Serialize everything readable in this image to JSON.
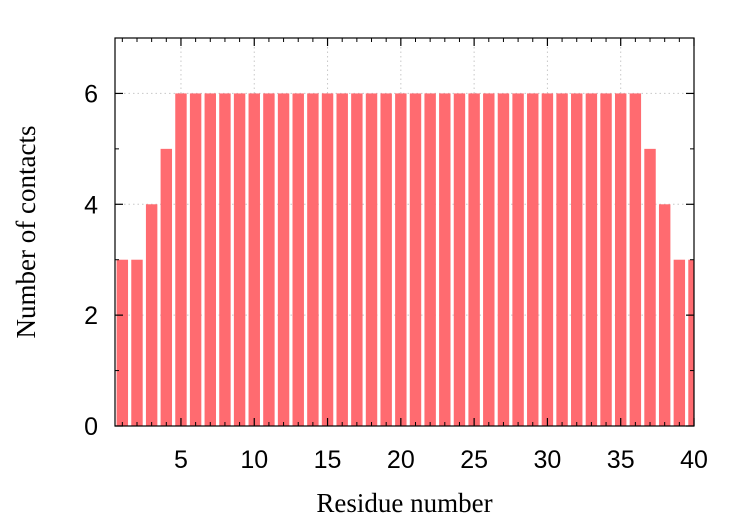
{
  "chart_data": {
    "type": "bar",
    "x": [
      1,
      2,
      3,
      4,
      5,
      6,
      7,
      8,
      9,
      10,
      11,
      12,
      13,
      14,
      15,
      16,
      17,
      18,
      19,
      20,
      21,
      22,
      23,
      24,
      25,
      26,
      27,
      28,
      29,
      30,
      31,
      32,
      33,
      34,
      35,
      36,
      37,
      38,
      39,
      40
    ],
    "values": [
      3,
      3,
      4,
      5,
      6,
      6,
      6,
      6,
      6,
      6,
      6,
      6,
      6,
      6,
      6,
      6,
      6,
      6,
      6,
      6,
      6,
      6,
      6,
      6,
      6,
      6,
      6,
      6,
      6,
      6,
      6,
      6,
      6,
      6,
      6,
      6,
      5,
      4,
      3,
      3
    ],
    "xlabel": "Residue number",
    "ylabel": "Number of contacts",
    "xlim": [
      0.5,
      40
    ],
    "ylim": [
      0,
      7
    ],
    "xticks": [
      "5",
      "10",
      "15",
      "20",
      "25",
      "30",
      "35",
      "40"
    ],
    "yticks": [
      "0",
      "2",
      "4",
      "6"
    ],
    "grid": true,
    "bar_color": "#ff6b70"
  }
}
